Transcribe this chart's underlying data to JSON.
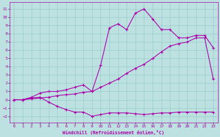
{
  "xlabel": "Windchill (Refroidissement éolien,°C)",
  "bg_color": "#bde0e0",
  "grid_color": "#99cccc",
  "line_color": "#aa00aa",
  "xlim": [
    -0.5,
    23.5
  ],
  "ylim": [
    -2.8,
    11.8
  ],
  "xticks": [
    0,
    1,
    2,
    3,
    4,
    5,
    6,
    7,
    8,
    9,
    10,
    11,
    12,
    13,
    14,
    15,
    16,
    17,
    18,
    19,
    20,
    21,
    22,
    23
  ],
  "yticks": [
    -2,
    -1,
    0,
    1,
    2,
    3,
    4,
    5,
    6,
    7,
    8,
    9,
    10,
    11
  ],
  "line1_x": [
    0,
    1,
    2,
    3,
    4,
    5,
    6,
    7,
    8,
    9,
    10,
    11,
    12,
    13,
    14,
    15,
    16,
    17,
    18,
    19,
    20,
    21,
    22,
    23
  ],
  "line1_y": [
    0,
    0,
    0.3,
    0.8,
    1.0,
    1.0,
    1.2,
    1.5,
    1.8,
    1.0,
    4.2,
    8.7,
    9.2,
    8.5,
    10.5,
    11.0,
    9.8,
    8.5,
    8.5,
    7.5,
    7.5,
    7.8,
    7.8,
    6.3
  ],
  "line2_x": [
    0,
    1,
    2,
    3,
    4,
    5,
    6,
    7,
    8,
    9,
    10,
    11,
    12,
    13,
    14,
    15,
    16,
    17,
    18,
    19,
    20,
    21,
    22,
    23
  ],
  "line2_y": [
    0,
    0,
    0.1,
    0.2,
    0.3,
    0.5,
    0.6,
    0.7,
    0.9,
    1.0,
    1.5,
    2.0,
    2.5,
    3.2,
    3.8,
    4.3,
    5.0,
    5.8,
    6.5,
    6.8,
    7.0,
    7.5,
    7.5,
    2.5
  ],
  "line3_x": [
    0,
    1,
    2,
    3,
    4,
    5,
    6,
    7,
    8,
    9,
    10,
    11,
    12,
    13,
    14,
    15,
    16,
    17,
    18,
    19,
    20,
    21,
    22,
    23
  ],
  "line3_y": [
    0,
    0,
    0.2,
    0.3,
    -0.3,
    -0.8,
    -1.2,
    -1.5,
    -1.5,
    -2.0,
    -1.8,
    -1.6,
    -1.6,
    -1.6,
    -1.7,
    -1.8,
    -1.7,
    -1.6,
    -1.6,
    -1.5,
    -1.5,
    -1.5,
    -1.5,
    -1.5
  ]
}
